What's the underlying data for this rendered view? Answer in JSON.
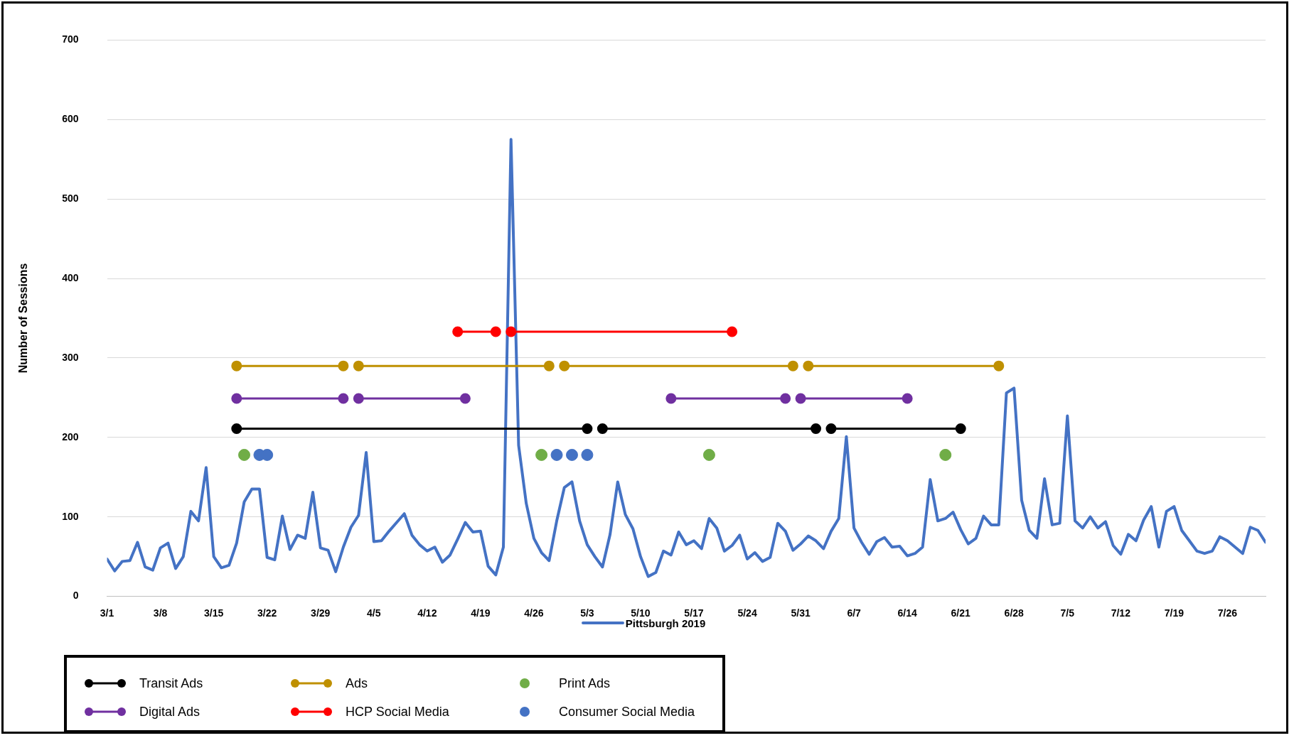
{
  "chart_data": {
    "type": "line",
    "ylabel": "Number of Sessions",
    "ylim": [
      0,
      700
    ],
    "yticks": [
      0,
      100,
      200,
      300,
      400,
      500,
      600,
      700
    ],
    "xlim": [
      "--03-01",
      "--07-31"
    ],
    "xticks": [
      {
        "value": "--03-01",
        "label": "3/1"
      },
      {
        "value": "--03-08",
        "label": "3/8"
      },
      {
        "value": "--03-15",
        "label": "3/15"
      },
      {
        "value": "--03-22",
        "label": "3/22"
      },
      {
        "value": "--03-29",
        "label": "3/29"
      },
      {
        "value": "--04-05",
        "label": "4/5"
      },
      {
        "value": "--04-12",
        "label": "4/12"
      },
      {
        "value": "--04-19",
        "label": "4/19"
      },
      {
        "value": "--04-26",
        "label": "4/26"
      },
      {
        "value": "--05-03",
        "label": "5/3"
      },
      {
        "value": "--05-10",
        "label": "5/10"
      },
      {
        "value": "--05-17",
        "label": "5/17"
      },
      {
        "value": "--05-24",
        "label": "5/24"
      },
      {
        "value": "--05-31",
        "label": "5/31"
      },
      {
        "value": "--06-07",
        "label": "6/7"
      },
      {
        "value": "--06-14",
        "label": "6/14"
      },
      {
        "value": "--06-21",
        "label": "6/21"
      },
      {
        "value": "--06-28",
        "label": "6/28"
      },
      {
        "value": "--07-05",
        "label": "7/5"
      },
      {
        "value": "--07-12",
        "label": "7/12"
      },
      {
        "value": "--07-19",
        "label": "7/19"
      },
      {
        "value": "--07-26",
        "label": "7/26"
      }
    ],
    "grid": "y",
    "legend": "bottom",
    "line_style": "solid",
    "series": [
      {
        "name": "Pittsburgh 2019",
        "color": "#4472c4",
        "marker": "none",
        "x": [
          "--03-01",
          "--03-02",
          "--03-03",
          "--03-04",
          "--03-05",
          "--03-06",
          "--03-07",
          "--03-08",
          "--03-09",
          "--03-10",
          "--03-11",
          "--03-12",
          "--03-13",
          "--03-14",
          "--03-15",
          "--03-16",
          "--03-17",
          "--03-18",
          "--03-19",
          "--03-20",
          "--03-21",
          "--03-22",
          "--03-23",
          "--03-24",
          "--03-25",
          "--03-26",
          "--03-27",
          "--03-28",
          "--03-29",
          "--03-30",
          "--03-31",
          "--04-01",
          "--04-02",
          "--04-03",
          "--04-04",
          "--04-05",
          "--04-06",
          "--04-07",
          "--04-08",
          "--04-09",
          "--04-10",
          "--04-11",
          "--04-12",
          "--04-13",
          "--04-14",
          "--04-15",
          "--04-16",
          "--04-17",
          "--04-18",
          "--04-19",
          "--04-20",
          "--04-21",
          "--04-22",
          "--04-23",
          "--04-24",
          "--04-25",
          "--04-26",
          "--04-27",
          "--04-28",
          "--04-29",
          "--04-30",
          "--05-01",
          "--05-02",
          "--05-03",
          "--05-04",
          "--05-05",
          "--05-06",
          "--05-07",
          "--05-08",
          "--05-09",
          "--05-10",
          "--05-11",
          "--05-12",
          "--05-13",
          "--05-14",
          "--05-15",
          "--05-16",
          "--05-17",
          "--05-18",
          "--05-19",
          "--05-20",
          "--05-21",
          "--05-22",
          "--05-23",
          "--05-24",
          "--05-25",
          "--05-26",
          "--05-27",
          "--05-28",
          "--05-29",
          "--05-30",
          "--05-31",
          "--06-01",
          "--06-02",
          "--06-03",
          "--06-04",
          "--06-05",
          "--06-06",
          "--06-07",
          "--06-08",
          "--06-09",
          "--06-10",
          "--06-11",
          "--06-12",
          "--06-13",
          "--06-14",
          "--06-15",
          "--06-16",
          "--06-17",
          "--06-18",
          "--06-19",
          "--06-20",
          "--06-21",
          "--06-22",
          "--06-23",
          "--06-24",
          "--06-25",
          "--06-26",
          "--06-27",
          "--06-28",
          "--06-29",
          "--06-30",
          "--07-01",
          "--07-02",
          "--07-03",
          "--07-04",
          "--07-05",
          "--07-06",
          "--07-07",
          "--07-08",
          "--07-09",
          "--07-10",
          "--07-11",
          "--07-12",
          "--07-13",
          "--07-14",
          "--07-15",
          "--07-16",
          "--07-17",
          "--07-18",
          "--07-19",
          "--07-20",
          "--07-21",
          "--07-22",
          "--07-23",
          "--07-24",
          "--07-25",
          "--07-26",
          "--07-27",
          "--07-28",
          "--07-29",
          "--07-30",
          "--07-31"
        ],
        "values": [
          47,
          32,
          44,
          45,
          68,
          37,
          33,
          61,
          67,
          35,
          50,
          107,
          95,
          162,
          50,
          36,
          39,
          67,
          119,
          135,
          135,
          49,
          46,
          101,
          59,
          77,
          73,
          131,
          61,
          58,
          31,
          62,
          87,
          102,
          181,
          69,
          70,
          82,
          93,
          104,
          77,
          65,
          57,
          62,
          43,
          52,
          72,
          93,
          81,
          82,
          38,
          27,
          62,
          575,
          190,
          117,
          73,
          55,
          45,
          95,
          137,
          144,
          95,
          65,
          50,
          37,
          78,
          144,
          103,
          85,
          50,
          25,
          30,
          57,
          52,
          81,
          65,
          70,
          60,
          98,
          86,
          57,
          64,
          77,
          47,
          55,
          44,
          49,
          92,
          82,
          58,
          66,
          76,
          70,
          60,
          82,
          98,
          201,
          86,
          68,
          53,
          69,
          74,
          62,
          63,
          51,
          54,
          62,
          147,
          95,
          98,
          106,
          84,
          66,
          73,
          101,
          90,
          90,
          256,
          262,
          121,
          83,
          73,
          148,
          90,
          92,
          227,
          95,
          86,
          100,
          86,
          94,
          64,
          53,
          78,
          70,
          96,
          113,
          62,
          107,
          113,
          83,
          70,
          57,
          54,
          57,
          75,
          70,
          62,
          54,
          87,
          83,
          68
        ]
      },
      {
        "name": "Transit Ads",
        "color": "#000000",
        "marker": "circle",
        "x": [
          "--03-18",
          "--05-03",
          "--05-04",
          "--05-05",
          "--06-02",
          "--06-03",
          "--06-04",
          "--06-21"
        ],
        "values": [
          211,
          211,
          null,
          211,
          211,
          null,
          211,
          211
        ]
      },
      {
        "name": "Digital Ads",
        "color": "#7030a0",
        "marker": "circle",
        "x": [
          "--03-18",
          "--04-01",
          "--04-02",
          "--04-03",
          "--04-17",
          "--05-13",
          "--05-14",
          "--05-29",
          "--05-30",
          "--05-31",
          "--06-14"
        ],
        "values": [
          249,
          249,
          null,
          249,
          249,
          null,
          249,
          249,
          null,
          249,
          249
        ]
      },
      {
        "name": "Ads",
        "color": "#bf9000",
        "marker": "circle",
        "x": [
          "--03-18",
          "--04-01",
          "--04-02",
          "--04-03",
          "--04-28",
          "--04-29",
          "--04-30",
          "--05-30",
          "--05-31",
          "--06-01",
          "--06-26"
        ],
        "values": [
          290,
          290,
          null,
          290,
          290,
          null,
          290,
          290,
          null,
          290,
          290
        ]
      },
      {
        "name": "HCP Social Media",
        "color": "#ff0000",
        "marker": "circle",
        "x": [
          "--04-16",
          "--04-21",
          "--04-22",
          "--04-23",
          "--05-22"
        ],
        "values": [
          333,
          333,
          null,
          333,
          333
        ]
      },
      {
        "name": "Print Ads",
        "type": "scatter",
        "color": "#70ad47",
        "marker": "circle",
        "x": [
          "--03-19",
          "--04-27",
          "--05-19",
          "--06-19"
        ],
        "values": [
          178,
          178,
          178,
          178
        ]
      },
      {
        "name": "Consumer Social Media",
        "type": "scatter",
        "color": "#4472c4",
        "marker": "circle",
        "x": [
          "--03-21",
          "--03-22",
          "--04-29",
          "--05-01",
          "--05-03"
        ],
        "values": [
          178,
          178,
          178,
          178,
          178
        ]
      }
    ]
  }
}
